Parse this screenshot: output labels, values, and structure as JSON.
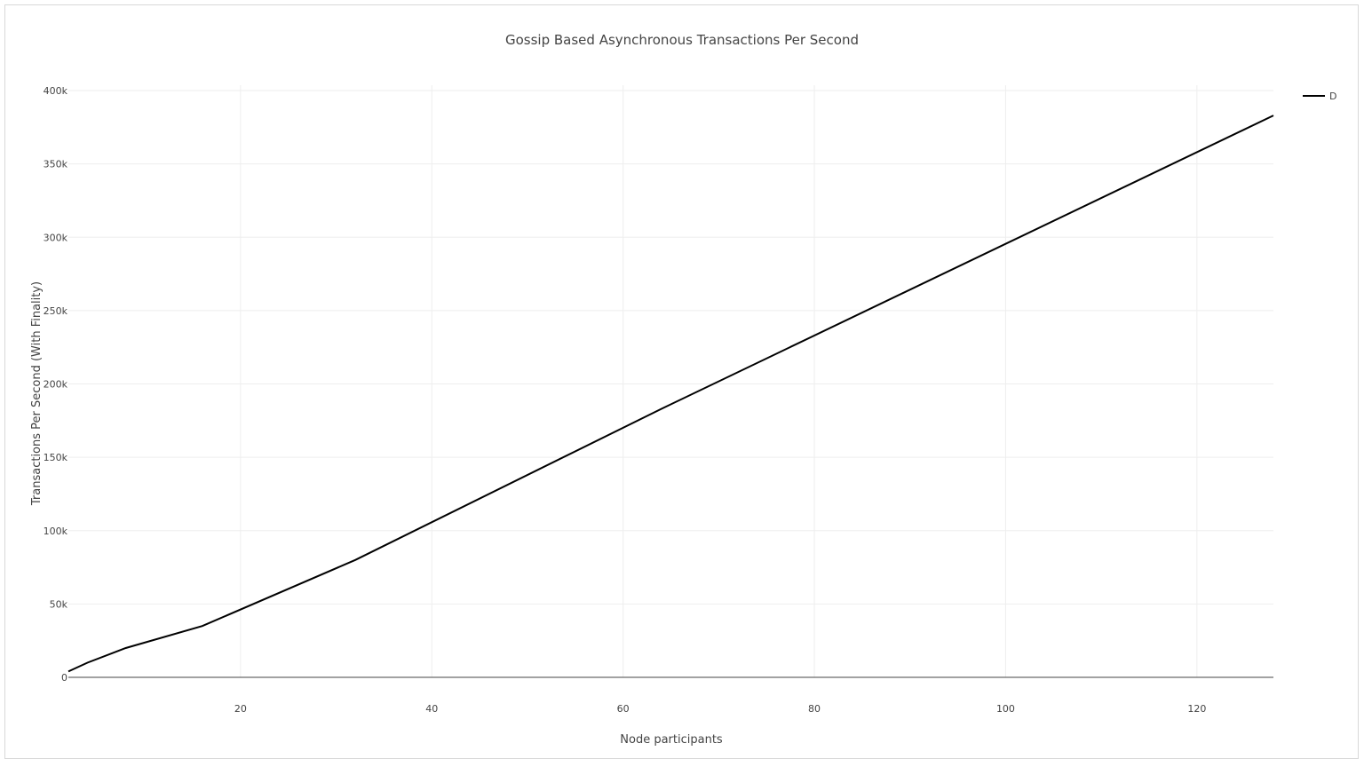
{
  "chart_data": {
    "type": "line",
    "title": "Gossip Based Asynchronous Transactions Per Second",
    "xlabel": "Node participants",
    "ylabel": "Transactions Per Second (With Finality)",
    "xlim": [
      2,
      128
    ],
    "ylim": [
      0,
      400000
    ],
    "x_ticks": [
      20,
      40,
      60,
      80,
      100,
      120
    ],
    "x_tick_labels": [
      "20",
      "40",
      "60",
      "80",
      "100",
      "120"
    ],
    "y_ticks": [
      0,
      50000,
      100000,
      150000,
      200000,
      250000,
      300000,
      350000,
      400000
    ],
    "y_tick_labels": [
      "0",
      "50k",
      "100k",
      "150k",
      "200k",
      "250k",
      "300k",
      "350k",
      "400k"
    ],
    "grid": true,
    "legend_position": "top-right",
    "series": [
      {
        "name": "D",
        "color": "#000000",
        "x": [
          2,
          4,
          8,
          16,
          32,
          64,
          128
        ],
        "y": [
          4000,
          10000,
          20000,
          35000,
          80000,
          183000,
          383000
        ]
      }
    ]
  }
}
